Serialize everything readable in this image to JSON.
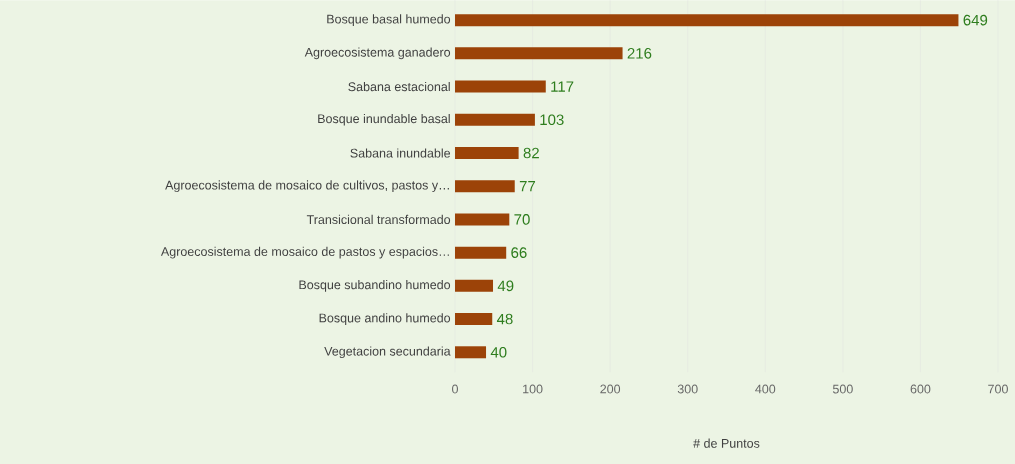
{
  "chart_data": {
    "type": "bar",
    "orientation": "horizontal",
    "xlabel": "# de Puntos",
    "categories": [
      "Bosque basal humedo",
      "Agroecosistema ganadero",
      "Sabana estacional",
      "Bosque inundable basal",
      "Sabana inundable",
      "Agroecosistema de mosaico de cultivos, pastos y…",
      "Transicional transformado",
      "Agroecosistema de mosaico de pastos y espacios…",
      "Bosque subandino humedo",
      "Bosque andino humedo",
      "Vegetacion secundaria"
    ],
    "values": [
      649,
      216,
      117,
      103,
      82,
      77,
      70,
      66,
      49,
      48,
      40
    ],
    "color": "#9c4308",
    "data_labels": true,
    "xlim": [
      0,
      700
    ],
    "xticks": [
      0,
      100,
      200,
      300,
      400,
      500,
      600,
      700
    ],
    "grid": "x"
  }
}
